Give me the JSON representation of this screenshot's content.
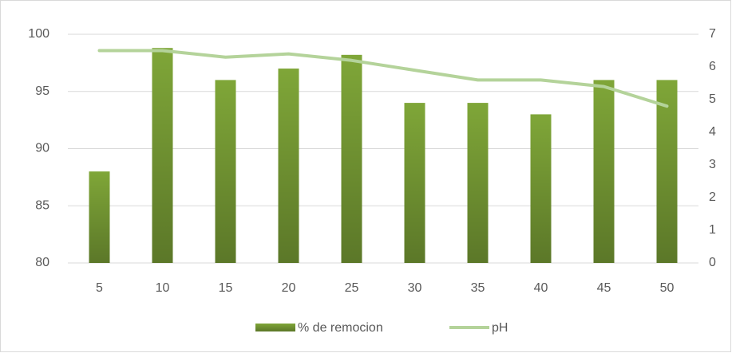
{
  "chart_data": {
    "type": "bar",
    "categories": [
      "5",
      "10",
      "15",
      "20",
      "25",
      "30",
      "35",
      "40",
      "45",
      "50"
    ],
    "series": [
      {
        "name": "% de remocion",
        "type": "bar",
        "color": "#7fa638",
        "values": [
          88,
          98.8,
          96,
          97,
          98.2,
          94,
          94,
          93,
          96,
          96
        ]
      },
      {
        "name": "pH",
        "type": "line",
        "axis": "y2",
        "color": "#b4d39a",
        "values": [
          6.5,
          6.5,
          6.3,
          6.4,
          6.2,
          5.9,
          5.6,
          5.6,
          5.4,
          4.8
        ]
      }
    ],
    "ylim": [
      80,
      100
    ],
    "yticks": [
      80,
      85,
      90,
      95,
      100
    ],
    "y2lim": [
      0,
      7
    ],
    "y2ticks": [
      0,
      1,
      2,
      3,
      4,
      5,
      6,
      7
    ],
    "grid": true,
    "legend": "bottom"
  }
}
